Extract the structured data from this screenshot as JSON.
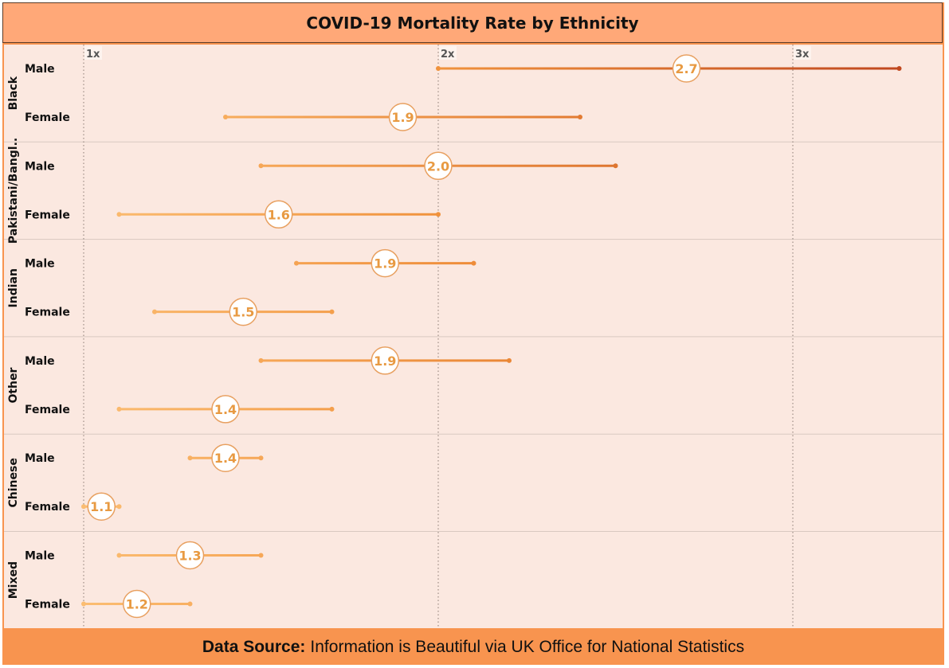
{
  "title": "COVID-19 Mortality Rate by Ethnicity",
  "footer": {
    "label": "Data Source:",
    "text": "Information is Beautiful via UK Office for National Statistics"
  },
  "colors": {
    "frame": "#f8944f",
    "title_bg": "#ffa878",
    "panel": "#fbe8e0",
    "low": "#fbbd72",
    "mid": "#f0903a",
    "high": "#c0481f",
    "label_text": "#e89a42"
  },
  "chart_data": {
    "type": "range-dot",
    "title": "COVID-19 Mortality Rate by Ethnicity",
    "x_ticks": [
      {
        "value": 1,
        "label": "1x"
      },
      {
        "value": 2,
        "label": "2x"
      },
      {
        "value": 3,
        "label": "3x"
      }
    ],
    "xlim": [
      1,
      3.3
    ],
    "groups": [
      {
        "name": "Black",
        "rows": [
          {
            "label": "Male",
            "low": 2.0,
            "high": 3.3,
            "value": 2.7,
            "value_label": "2.7"
          },
          {
            "label": "Female",
            "low": 1.4,
            "high": 2.4,
            "value": 1.9,
            "value_label": "1.9"
          }
        ]
      },
      {
        "name": "Pakistani/Bangl..",
        "rows": [
          {
            "label": "Male",
            "low": 1.5,
            "high": 2.5,
            "value": 2.0,
            "value_label": "2.0"
          },
          {
            "label": "Female",
            "low": 1.1,
            "high": 2.0,
            "value": 1.55,
            "value_label": "1.6"
          }
        ]
      },
      {
        "name": "Indian",
        "rows": [
          {
            "label": "Male",
            "low": 1.6,
            "high": 2.1,
            "value": 1.85,
            "value_label": "1.9"
          },
          {
            "label": "Female",
            "low": 1.2,
            "high": 1.7,
            "value": 1.45,
            "value_label": "1.5"
          }
        ]
      },
      {
        "name": "Other",
        "rows": [
          {
            "label": "Male",
            "low": 1.5,
            "high": 2.2,
            "value": 1.85,
            "value_label": "1.9"
          },
          {
            "label": "Female",
            "low": 1.1,
            "high": 1.7,
            "value": 1.4,
            "value_label": "1.4"
          }
        ]
      },
      {
        "name": "Chinese",
        "rows": [
          {
            "label": "Male",
            "low": 1.3,
            "high": 1.5,
            "value": 1.4,
            "value_label": "1.4"
          },
          {
            "label": "Female",
            "low": 1.0,
            "high": 1.1,
            "value": 1.05,
            "value_label": "1.1"
          }
        ]
      },
      {
        "name": "Mixed",
        "rows": [
          {
            "label": "Male",
            "low": 1.1,
            "high": 1.5,
            "value": 1.3,
            "value_label": "1.3"
          },
          {
            "label": "Female",
            "low": 1.0,
            "high": 1.3,
            "value": 1.15,
            "value_label": "1.2"
          }
        ]
      }
    ]
  }
}
